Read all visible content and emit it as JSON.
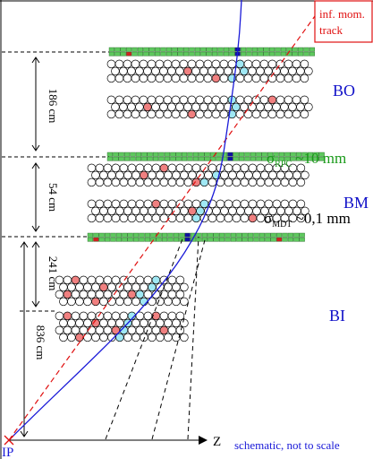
{
  "labels": {
    "inf_mom": "inf. mom.",
    "track": "track",
    "bo": "BO",
    "bm": "BM",
    "bi": "BI",
    "sigma_symbol": "σ",
    "rpc_sub": "RPC",
    "rpc_value": " ~10 mm",
    "mdt_sub": "MDT",
    "mdt_value": " ~0,1 mm",
    "z_axis": "Z",
    "ip": "IP",
    "note": "schematic, not to scale"
  },
  "distances": {
    "d186": "186 cm",
    "d54": "54 cm",
    "d241": "241 cm",
    "d836": "836 cm"
  },
  "colors": {
    "chamber_label": "#1010c8",
    "rpc_label": "#1a9a1a",
    "inf_track": "#e01010",
    "track": "#1a1ad8",
    "tube_hit": "#f08080",
    "tube_track": "#a0e8f4",
    "rpc_strip": "#5ec85e",
    "rpc_hit_red": "#d02020",
    "rpc_hit_blue": "#1010a0"
  }
}
